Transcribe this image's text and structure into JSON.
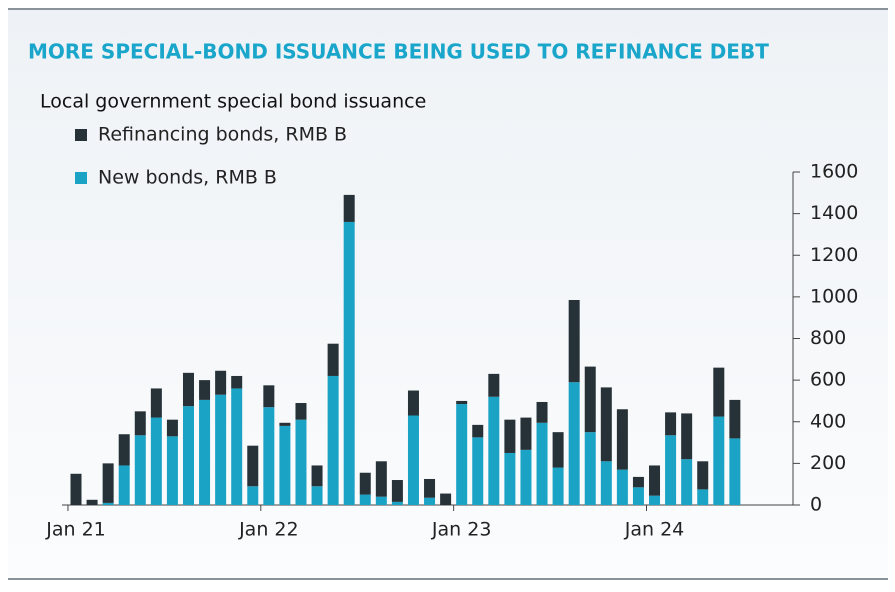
{
  "chart_data": {
    "type": "stacked_bar",
    "title": "MORE SPECIAL-BOND ISSUANCE BEING USED TO REFINANCE DEBT",
    "subtitle": "Local government special bond issuance",
    "categories": [
      "Jan 21",
      null,
      null,
      null,
      null,
      null,
      null,
      null,
      null,
      null,
      null,
      null,
      "Jan 22",
      null,
      null,
      null,
      null,
      null,
      null,
      null,
      null,
      null,
      null,
      null,
      "Jan 23",
      null,
      null,
      null,
      null,
      null,
      null,
      null,
      null,
      null,
      null,
      null,
      "Jan 24",
      null,
      null,
      null,
      null,
      null
    ],
    "series": [
      {
        "name": "New bonds, RMB B",
        "color": "#1ba3c6",
        "values": [
          0,
          0,
          10,
          190,
          335,
          420,
          330,
          475,
          505,
          530,
          560,
          90,
          470,
          380,
          410,
          90,
          620,
          1360,
          50,
          40,
          15,
          430,
          35,
          0,
          485,
          325,
          520,
          250,
          265,
          395,
          180,
          590,
          350,
          210,
          170,
          85,
          45,
          335,
          220,
          75,
          425,
          320
        ]
      },
      {
        "name": "Refinancing bonds, RMB B",
        "color": "#263238",
        "values": [
          150,
          25,
          190,
          150,
          115,
          140,
          80,
          160,
          95,
          115,
          60,
          195,
          105,
          15,
          80,
          100,
          155,
          130,
          105,
          170,
          105,
          120,
          90,
          55,
          15,
          60,
          110,
          160,
          155,
          100,
          170,
          395,
          315,
          355,
          290,
          50,
          145,
          110,
          220,
          135,
          235,
          185
        ]
      }
    ],
    "ylim": [
      0,
      1600
    ],
    "yticks": [
      0,
      200,
      400,
      600,
      800,
      1000,
      1200,
      1400,
      1600
    ]
  }
}
